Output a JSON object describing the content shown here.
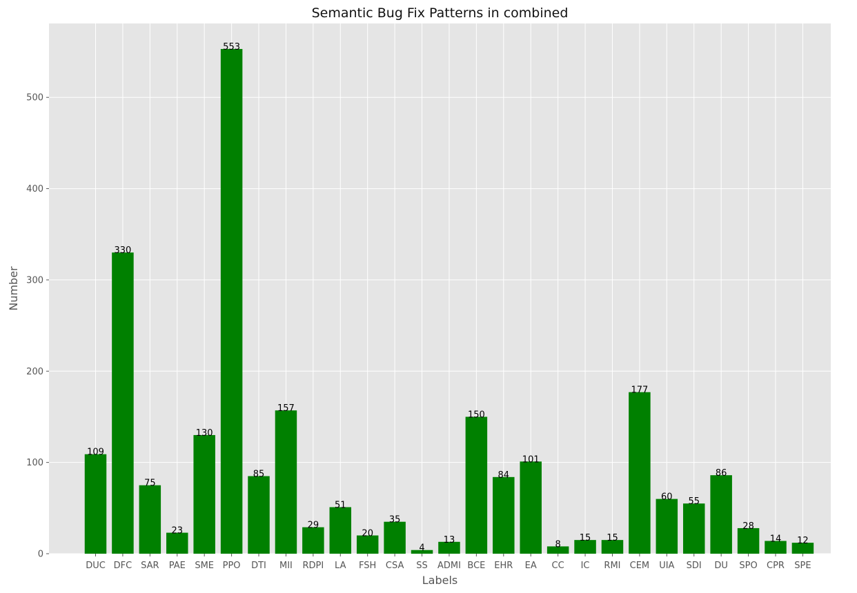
{
  "colors": {
    "background": "#ffffff",
    "plot_background": "#e5e5e5",
    "grid": "#ffffff",
    "bar": "#008000",
    "tick_text": "#555555",
    "title_text": "#111111",
    "data_label_text": "#000000"
  },
  "chart_data": {
    "type": "bar",
    "title": "Semantic Bug Fix Patterns in combined",
    "xlabel": "Labels",
    "ylabel": "Number",
    "categories": [
      "DUC",
      "DFC",
      "SAR",
      "PAE",
      "SME",
      "PPO",
      "DTI",
      "MII",
      "RDPI",
      "LA",
      "FSH",
      "CSA",
      "SS",
      "ADMI",
      "BCE",
      "EHR",
      "EA",
      "CC",
      "IC",
      "RMI",
      "CEM",
      "UIA",
      "SDI",
      "DU",
      "SPO",
      "CPR",
      "SPE"
    ],
    "values": [
      109,
      330,
      75,
      23,
      130,
      553,
      85,
      157,
      29,
      51,
      20,
      35,
      4,
      13,
      150,
      84,
      101,
      8,
      15,
      15,
      177,
      60,
      55,
      86,
      28,
      14,
      12
    ],
    "ylim": [
      0,
      581
    ],
    "yticks": [
      0,
      100,
      200,
      300,
      400,
      500
    ],
    "grid": true,
    "style": "ggplot"
  }
}
